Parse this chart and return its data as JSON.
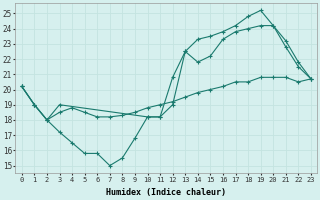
{
  "title": "",
  "xlabel": "Humidex (Indice chaleur)",
  "background_color": "#d6f0ee",
  "grid_color": "#c4e4e0",
  "line_color": "#1a7a6e",
  "series": [
    {
      "x": [
        0,
        1,
        2,
        3,
        4,
        5,
        6,
        7,
        8,
        9,
        10,
        11,
        12,
        13,
        14,
        15,
        16,
        17,
        18,
        19,
        20,
        21,
        22,
        23
      ],
      "y": [
        20.2,
        19.0,
        18.0,
        17.2,
        16.5,
        15.8,
        15.8,
        15.0,
        15.5,
        16.8,
        18.2,
        18.2,
        19.0,
        22.5,
        21.8,
        22.2,
        23.3,
        23.8,
        24.0,
        24.2,
        24.2,
        23.2,
        21.8,
        20.7
      ]
    },
    {
      "x": [
        0,
        1,
        2,
        3,
        10,
        11,
        12,
        13,
        14,
        15,
        16,
        17,
        18,
        19,
        20,
        21,
        22,
        23
      ],
      "y": [
        20.2,
        19.0,
        18.0,
        19.0,
        18.2,
        18.2,
        20.8,
        22.5,
        23.3,
        23.5,
        23.8,
        24.2,
        24.8,
        25.2,
        24.2,
        22.8,
        21.5,
        20.7
      ]
    },
    {
      "x": [
        0,
        1,
        2,
        3,
        4,
        5,
        6,
        7,
        8,
        9,
        10,
        11,
        12,
        13,
        14,
        15,
        16,
        17,
        18,
        19,
        20,
        21,
        22,
        23
      ],
      "y": [
        20.2,
        19.0,
        18.0,
        18.5,
        18.8,
        18.5,
        18.2,
        18.2,
        18.3,
        18.5,
        18.8,
        19.0,
        19.2,
        19.5,
        19.8,
        20.0,
        20.2,
        20.5,
        20.5,
        20.8,
        20.8,
        20.8,
        20.5,
        20.7
      ]
    }
  ],
  "xlim": [
    -0.5,
    23.5
  ],
  "ylim": [
    14.5,
    25.7
  ],
  "yticks": [
    15,
    16,
    17,
    18,
    19,
    20,
    21,
    22,
    23,
    24,
    25
  ],
  "xticks": [
    0,
    1,
    2,
    3,
    4,
    5,
    6,
    7,
    8,
    9,
    10,
    11,
    12,
    13,
    14,
    15,
    16,
    17,
    18,
    19,
    20,
    21,
    22,
    23
  ]
}
